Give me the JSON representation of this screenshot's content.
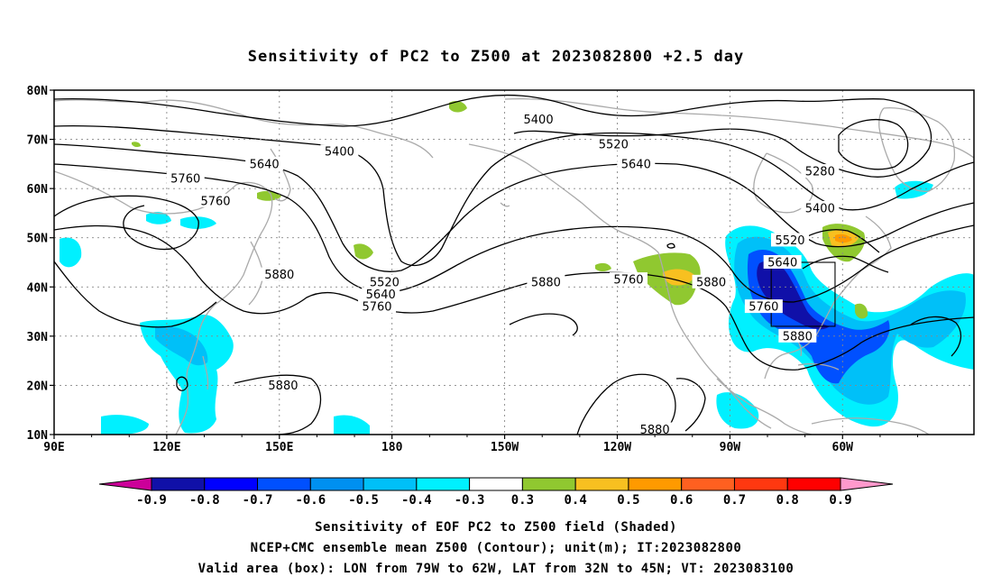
{
  "title": "Sensitivity of PC2 to Z500 at 2023082800 +2.5 day",
  "map": {
    "lat_ticks": [
      "80N",
      "70N",
      "60N",
      "50N",
      "40N",
      "30N",
      "20N",
      "10N"
    ],
    "lon_ticks": [
      "90E",
      "120E",
      "150E",
      "180",
      "150W",
      "120W",
      "90W",
      "60W"
    ],
    "contour_labels": [
      {
        "text": "5400",
        "lon": 166,
        "lat": 67.5
      },
      {
        "text": "5640",
        "lon": 146,
        "lat": 65
      },
      {
        "text": "5760",
        "lon": 125,
        "lat": 62
      },
      {
        "text": "5760",
        "lon": 133,
        "lat": 57.5
      },
      {
        "text": "5880",
        "lon": 150,
        "lat": 42.5
      },
      {
        "text": "5880",
        "lon": 151,
        "lat": 20
      },
      {
        "text": "5400",
        "lon": -141,
        "lat": 74
      },
      {
        "text": "5520",
        "lon": -121,
        "lat": 69
      },
      {
        "text": "5640",
        "lon": -115,
        "lat": 65
      },
      {
        "text": "5520",
        "lon": 178,
        "lat": 41
      },
      {
        "text": "5640",
        "lon": 177,
        "lat": 38.5
      },
      {
        "text": "5760",
        "lon": 176,
        "lat": 36
      },
      {
        "text": "5880",
        "lon": -139,
        "lat": 41
      },
      {
        "text": "5760",
        "lon": -117,
        "lat": 41.5
      },
      {
        "text": "5880",
        "lon": -95,
        "lat": 41
      },
      {
        "text": "5760",
        "lon": -81,
        "lat": 36
      },
      {
        "text": "5880",
        "lon": -72,
        "lat": 30
      },
      {
        "text": "5280",
        "lon": -66,
        "lat": 63.5
      },
      {
        "text": "5400",
        "lon": -66,
        "lat": 56
      },
      {
        "text": "5520",
        "lon": -74,
        "lat": 49.5
      },
      {
        "text": "5640",
        "lon": -76,
        "lat": 45
      },
      {
        "text": "5880",
        "lon": -110,
        "lat": 11
      }
    ],
    "valid_box": {
      "lon_min": -79,
      "lon_max": -62,
      "lat_min": 32,
      "lat_max": 45
    },
    "colors": {
      "contour": "#000000",
      "coast": "#aaaaaa",
      "grid": "#888888"
    }
  },
  "colorbar": {
    "labels": [
      "-0.9",
      "-0.8",
      "-0.7",
      "-0.6",
      "-0.5",
      "-0.4",
      "-0.3",
      "0.3",
      "0.4",
      "0.5",
      "0.6",
      "0.7",
      "0.8",
      "0.9"
    ],
    "colors": [
      "#cc0099",
      "#1010a8",
      "#0000ff",
      "#0050ff",
      "#0090f0",
      "#00c0f8",
      "#00f0ff",
      "#ffffff",
      "#90c830",
      "#f8c020",
      "#ff9a00",
      "#ff6020",
      "#ff3810",
      "#ff0000",
      "#ff99cc"
    ]
  },
  "caption": {
    "line1": "Sensitivity of EOF PC2 to Z500 field (Shaded)",
    "line2": "NCEP+CMC ensemble mean Z500 (Contour); unit(m); IT:2023082800",
    "line3": "Valid area (box): LON from 79W to 62W, LAT from 32N to 45N; VT: 2023083100"
  }
}
